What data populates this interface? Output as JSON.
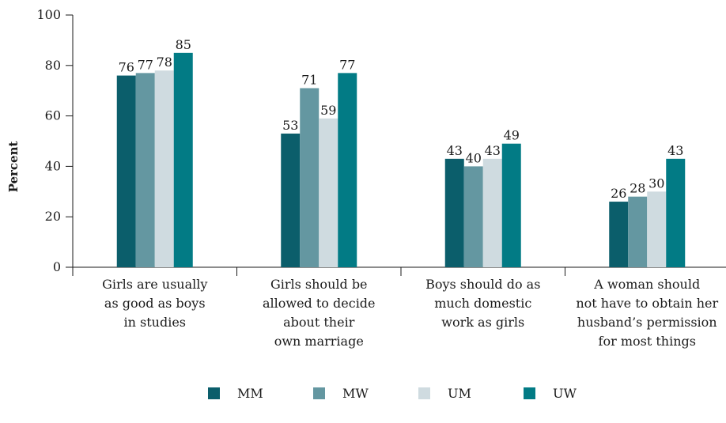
{
  "chart_data": {
    "type": "bar",
    "ylabel": "Percent",
    "xlabel": "",
    "ylim": [
      0,
      100
    ],
    "yticks": [
      0,
      20,
      40,
      60,
      80,
      100
    ],
    "grid": false,
    "legend_position": "bottom",
    "categories": [
      [
        "Girls are usually",
        "as good as boys",
        "in studies"
      ],
      [
        "Girls should be",
        "allowed to decide",
        "about their",
        "own marriage"
      ],
      [
        "Boys should do as",
        "much domestic",
        "work as girls"
      ],
      [
        "A woman should",
        "not have to obtain her",
        "husband’s permission",
        "for most things"
      ]
    ],
    "series": [
      {
        "name": "MM",
        "color": "#0b5e6b",
        "values": [
          76,
          53,
          43,
          26
        ]
      },
      {
        "name": "MW",
        "color": "#6497a1",
        "values": [
          77,
          71,
          40,
          28
        ]
      },
      {
        "name": "UM",
        "color": "#cfdbe0",
        "values": [
          78,
          59,
          43,
          30
        ]
      },
      {
        "name": "UW",
        "color": "#027b85",
        "values": [
          85,
          77,
          49,
          43
        ]
      }
    ]
  }
}
